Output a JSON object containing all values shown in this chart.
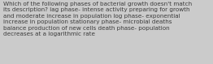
{
  "text": "Which of the following phases of bacterial growth doesn't match\nits description? lag phase- intense activity preparing for growth\nand moderate increase in population log phase- exponential\nincrease in population stationary phase- microbial deaths\nbalance production of new cells death phase- population\ndecreases at a logarithmic rate",
  "bg_color": "#cbcbcb",
  "text_color": "#3d3d3d",
  "font_size": 5.2,
  "figsize": [
    2.62,
    0.79
  ],
  "dpi": 100
}
